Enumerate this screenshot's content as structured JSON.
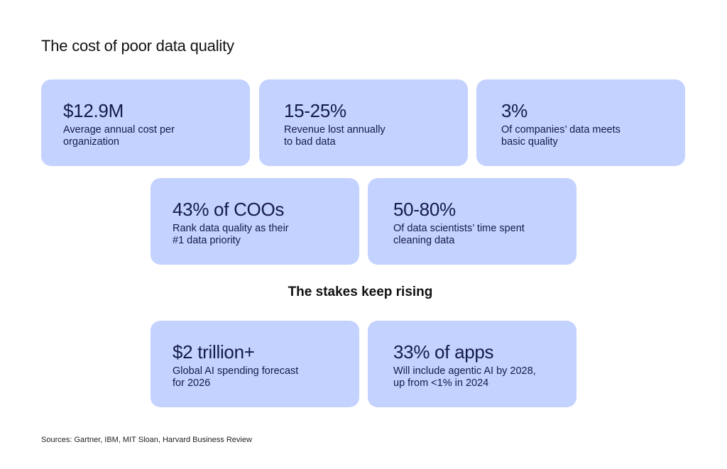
{
  "title": "The cost of poor data quality",
  "cards_top": [
    {
      "stat": "$12.9M",
      "desc_line1": "Average annual cost per",
      "desc_line2": "organization"
    },
    {
      "stat": "15-25%",
      "desc_line1": "Revenue lost annually",
      "desc_line2": "to bad data"
    },
    {
      "stat": "3%",
      "desc_line1": "Of companies’ data meets",
      "desc_line2": "basic quality"
    }
  ],
  "cards_middle": [
    {
      "stat": "43% of COOs",
      "desc_line1": "Rank data quality as their",
      "desc_line2": "#1 data priority"
    },
    {
      "stat": "50-80%",
      "desc_line1": "Of data scientists’ time spent",
      "desc_line2": "cleaning data"
    }
  ],
  "section_title": "The stakes keep rising",
  "cards_bottom": [
    {
      "stat": "$2 trillion+",
      "desc_line1": "Global AI spending forecast",
      "desc_line2": "for 2026"
    },
    {
      "stat": "33% of apps",
      "desc_line1": "Will include agentic AI by 2028,",
      "desc_line2": "up from <1% in 2024"
    }
  ],
  "sources": "Sources: Gartner, IBM, MIT Sloan, Harvard Business Review",
  "colors": {
    "card_background": "#c3d2ff",
    "card_text": "#141a4a",
    "page_background": "#ffffff"
  }
}
